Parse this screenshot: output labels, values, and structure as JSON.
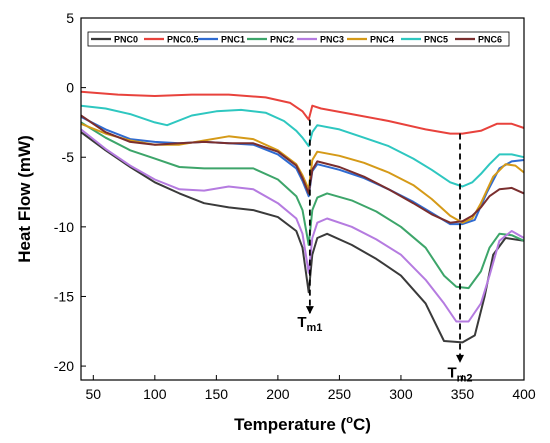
{
  "chart_data": {
    "type": "line",
    "title": "",
    "xlabel_main": "Temperature (",
    "xlabel_sup": "o",
    "xlabel_end": "C)",
    "ylabel": "Heat Flow (mW)",
    "xlim": [
      40,
      400
    ],
    "ylim": [
      -21,
      5
    ],
    "xticks": [
      50,
      100,
      150,
      200,
      250,
      300,
      350,
      400
    ],
    "yticks": [
      5,
      0,
      -5,
      -10,
      -15,
      -20
    ],
    "grid": false,
    "legend_position": "top",
    "annotations": [
      {
        "main": "T",
        "sub": "m1",
        "x": 226,
        "y": -16.2
      },
      {
        "main": "T",
        "sub": "m2",
        "x": 348,
        "y": -19.8
      }
    ],
    "dashed_guides": [
      {
        "x": 226,
        "y_from": -2.3,
        "y_to": -16.2
      },
      {
        "x": 348,
        "y_from": -3.3,
        "y_to": -19.7
      }
    ],
    "series": [
      {
        "name": "PNC0",
        "color": "#3a3a3a",
        "points": [
          [
            40,
            -3.2
          ],
          [
            60,
            -4.5
          ],
          [
            80,
            -5.7
          ],
          [
            100,
            -6.8
          ],
          [
            120,
            -7.6
          ],
          [
            140,
            -8.3
          ],
          [
            160,
            -8.6
          ],
          [
            180,
            -8.8
          ],
          [
            200,
            -9.3
          ],
          [
            215,
            -10.3
          ],
          [
            220,
            -11.5
          ],
          [
            225,
            -14.7
          ],
          [
            228,
            -12
          ],
          [
            232,
            -10.8
          ],
          [
            240,
            -10.5
          ],
          [
            260,
            -11.3
          ],
          [
            280,
            -12.3
          ],
          [
            300,
            -13.5
          ],
          [
            320,
            -15.5
          ],
          [
            335,
            -18.2
          ],
          [
            350,
            -18.3
          ],
          [
            360,
            -17.8
          ],
          [
            368,
            -15
          ],
          [
            375,
            -12
          ],
          [
            385,
            -10.8
          ],
          [
            400,
            -11
          ]
        ]
      },
      {
        "name": "PNC0.5",
        "color": "#e8423c",
        "points": [
          [
            40,
            -0.3
          ],
          [
            70,
            -0.5
          ],
          [
            100,
            -0.6
          ],
          [
            130,
            -0.5
          ],
          [
            160,
            -0.5
          ],
          [
            190,
            -0.7
          ],
          [
            210,
            -1.1
          ],
          [
            220,
            -1.7
          ],
          [
            225,
            -2.3
          ],
          [
            228,
            -1.3
          ],
          [
            235,
            -1.5
          ],
          [
            260,
            -1.9
          ],
          [
            290,
            -2.4
          ],
          [
            320,
            -3
          ],
          [
            340,
            -3.3
          ],
          [
            350,
            -3.3
          ],
          [
            365,
            -3.1
          ],
          [
            378,
            -2.6
          ],
          [
            390,
            -2.6
          ],
          [
            400,
            -2.9
          ]
        ]
      },
      {
        "name": "PNC1",
        "color": "#2f6bd1",
        "points": [
          [
            40,
            -2.1
          ],
          [
            60,
            -3
          ],
          [
            80,
            -3.7
          ],
          [
            100,
            -3.9
          ],
          [
            120,
            -4
          ],
          [
            140,
            -3.9
          ],
          [
            160,
            -4
          ],
          [
            180,
            -4.1
          ],
          [
            200,
            -4.8
          ],
          [
            215,
            -5.8
          ],
          [
            220,
            -6.7
          ],
          [
            225,
            -7.8
          ],
          [
            228,
            -6
          ],
          [
            232,
            -5.5
          ],
          [
            250,
            -5.9
          ],
          [
            270,
            -6.5
          ],
          [
            290,
            -7.3
          ],
          [
            310,
            -8.2
          ],
          [
            325,
            -9
          ],
          [
            340,
            -9.8
          ],
          [
            350,
            -9.8
          ],
          [
            360,
            -9.5
          ],
          [
            370,
            -7.5
          ],
          [
            380,
            -5.8
          ],
          [
            390,
            -5.3
          ],
          [
            400,
            -5.2
          ]
        ]
      },
      {
        "name": "PNC2",
        "color": "#3da56a",
        "points": [
          [
            40,
            -2.5
          ],
          [
            60,
            -3.6
          ],
          [
            80,
            -4.5
          ],
          [
            100,
            -5.1
          ],
          [
            120,
            -5.7
          ],
          [
            140,
            -5.8
          ],
          [
            160,
            -5.8
          ],
          [
            180,
            -5.8
          ],
          [
            200,
            -6.6
          ],
          [
            215,
            -7.8
          ],
          [
            220,
            -8.8
          ],
          [
            225,
            -11.3
          ],
          [
            228,
            -8.8
          ],
          [
            232,
            -7.9
          ],
          [
            240,
            -7.6
          ],
          [
            260,
            -8.1
          ],
          [
            280,
            -8.9
          ],
          [
            300,
            -10
          ],
          [
            320,
            -11.5
          ],
          [
            335,
            -13.5
          ],
          [
            345,
            -14.3
          ],
          [
            355,
            -14.4
          ],
          [
            365,
            -13.2
          ],
          [
            372,
            -11.5
          ],
          [
            380,
            -10.5
          ],
          [
            390,
            -10.6
          ],
          [
            400,
            -11
          ]
        ]
      },
      {
        "name": "PNC3",
        "color": "#b57be0",
        "points": [
          [
            40,
            -3
          ],
          [
            60,
            -4.4
          ],
          [
            80,
            -5.6
          ],
          [
            100,
            -6.6
          ],
          [
            120,
            -7.3
          ],
          [
            140,
            -7.4
          ],
          [
            160,
            -7.1
          ],
          [
            180,
            -7.3
          ],
          [
            200,
            -8.3
          ],
          [
            215,
            -9.4
          ],
          [
            220,
            -10.5
          ],
          [
            225,
            -13.3
          ],
          [
            228,
            -10.8
          ],
          [
            232,
            -9.7
          ],
          [
            240,
            -9.4
          ],
          [
            260,
            -10
          ],
          [
            280,
            -10.9
          ],
          [
            300,
            -12
          ],
          [
            320,
            -13.8
          ],
          [
            335,
            -15.5
          ],
          [
            345,
            -16.8
          ],
          [
            355,
            -16.8
          ],
          [
            365,
            -15.5
          ],
          [
            372,
            -13.5
          ],
          [
            380,
            -11
          ],
          [
            390,
            -10.3
          ],
          [
            400,
            -10.8
          ]
        ]
      },
      {
        "name": "PNC4",
        "color": "#d59a18",
        "points": [
          [
            40,
            -2.6
          ],
          [
            60,
            -3.3
          ],
          [
            80,
            -3.8
          ],
          [
            100,
            -4.1
          ],
          [
            120,
            -4.1
          ],
          [
            140,
            -3.8
          ],
          [
            160,
            -3.5
          ],
          [
            180,
            -3.7
          ],
          [
            200,
            -4.5
          ],
          [
            215,
            -5.5
          ],
          [
            220,
            -6.3
          ],
          [
            225,
            -7.3
          ],
          [
            228,
            -5.2
          ],
          [
            232,
            -4.6
          ],
          [
            250,
            -4.9
          ],
          [
            270,
            -5.4
          ],
          [
            290,
            -6.1
          ],
          [
            310,
            -7
          ],
          [
            325,
            -8
          ],
          [
            340,
            -9.2
          ],
          [
            350,
            -9.7
          ],
          [
            358,
            -9.4
          ],
          [
            365,
            -8.3
          ],
          [
            375,
            -6.4
          ],
          [
            385,
            -5.5
          ],
          [
            393,
            -5.6
          ],
          [
            400,
            -6.1
          ]
        ]
      },
      {
        "name": "PNC5",
        "color": "#2ec7c0",
        "points": [
          [
            40,
            -1.3
          ],
          [
            60,
            -1.5
          ],
          [
            80,
            -1.9
          ],
          [
            100,
            -2.5
          ],
          [
            110,
            -2.7
          ],
          [
            130,
            -2
          ],
          [
            150,
            -1.7
          ],
          [
            170,
            -1.6
          ],
          [
            190,
            -1.8
          ],
          [
            205,
            -2.4
          ],
          [
            215,
            -3.1
          ],
          [
            220,
            -3.6
          ],
          [
            225,
            -4.2
          ],
          [
            228,
            -3.2
          ],
          [
            232,
            -2.7
          ],
          [
            250,
            -3
          ],
          [
            270,
            -3.6
          ],
          [
            290,
            -4.2
          ],
          [
            310,
            -5.1
          ],
          [
            325,
            -5.9
          ],
          [
            340,
            -6.8
          ],
          [
            350,
            -7.1
          ],
          [
            358,
            -6.8
          ],
          [
            365,
            -6.2
          ],
          [
            372,
            -5.5
          ],
          [
            380,
            -4.8
          ],
          [
            390,
            -4.8
          ],
          [
            400,
            -5
          ]
        ]
      },
      {
        "name": "PNC6",
        "color": "#7a2e2e",
        "points": [
          [
            40,
            -2
          ],
          [
            60,
            -3.2
          ],
          [
            80,
            -3.9
          ],
          [
            100,
            -4.1
          ],
          [
            120,
            -4
          ],
          [
            140,
            -3.9
          ],
          [
            160,
            -4
          ],
          [
            180,
            -4
          ],
          [
            200,
            -4.6
          ],
          [
            215,
            -5.6
          ],
          [
            220,
            -6.5
          ],
          [
            225,
            -7.6
          ],
          [
            228,
            -5.9
          ],
          [
            232,
            -5.3
          ],
          [
            250,
            -5.7
          ],
          [
            270,
            -6.4
          ],
          [
            290,
            -7.3
          ],
          [
            310,
            -8.3
          ],
          [
            325,
            -9.1
          ],
          [
            340,
            -9.7
          ],
          [
            350,
            -9.6
          ],
          [
            358,
            -9.2
          ],
          [
            365,
            -8.6
          ],
          [
            372,
            -7.8
          ],
          [
            380,
            -7.3
          ],
          [
            390,
            -7.2
          ],
          [
            400,
            -7.6
          ]
        ]
      }
    ]
  }
}
